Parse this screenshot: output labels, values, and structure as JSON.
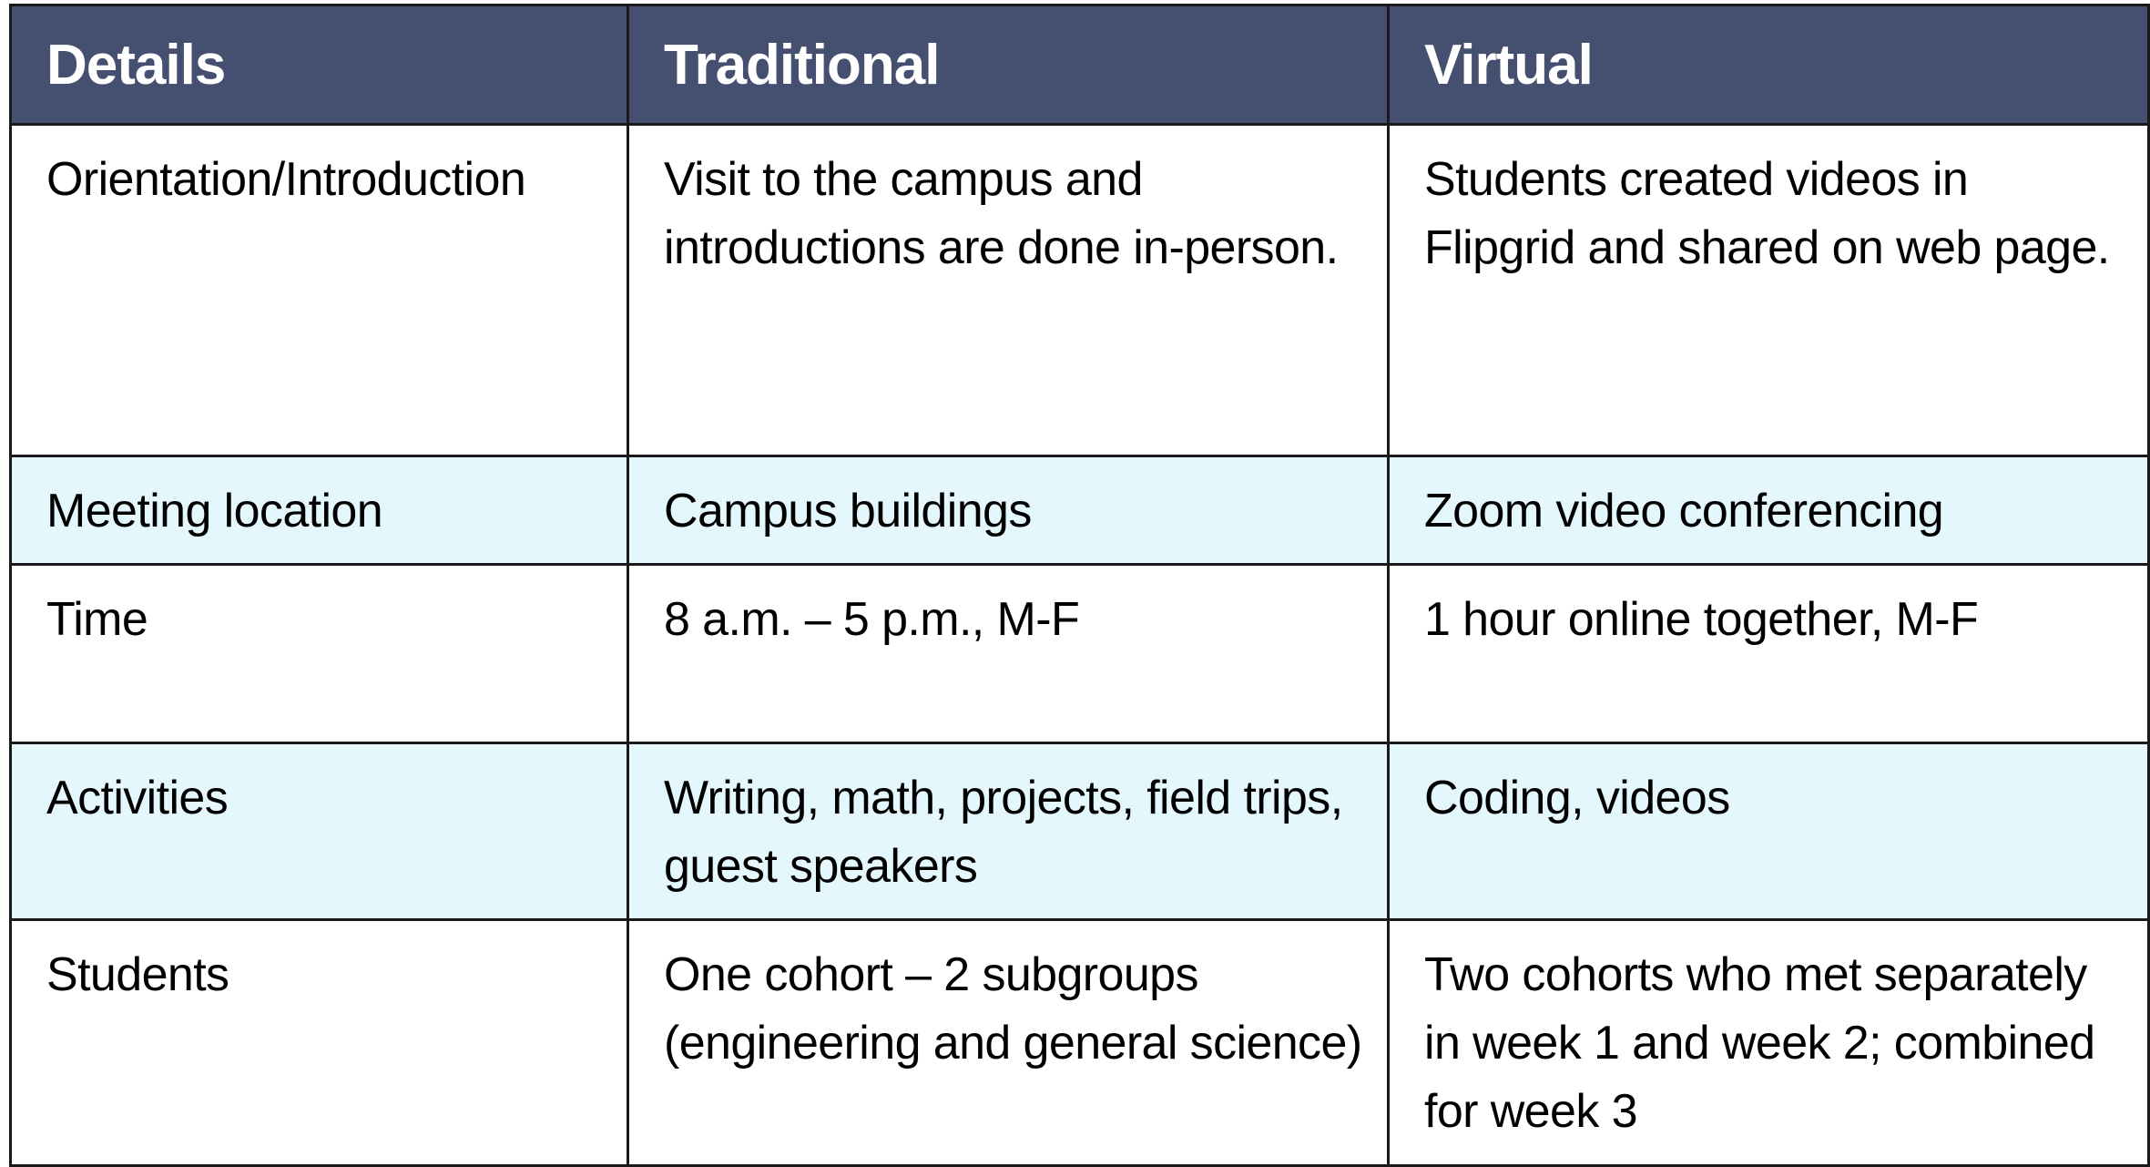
{
  "colors": {
    "header_bg": "#455070",
    "header_text": "#ffffff",
    "shaded_row": "#e4f7fd"
  },
  "table": {
    "headers": [
      "Details",
      "Traditional",
      "Virtual"
    ],
    "rows": [
      [
        "Orientation/Introduction",
        "Visit to the campus and introductions are done in-person.",
        "Students created videos in Flipgrid and shared on web page."
      ],
      [
        "Meeting location",
        "Campus buildings",
        "Zoom video conferencing"
      ],
      [
        "Time",
        "8 a.m. – 5 p.m., M-F",
        "1 hour online together, M-F"
      ],
      [
        "Activities",
        "Writing, math, projects, field trips, guest speakers",
        "Coding, videos"
      ],
      [
        "Students",
        "One cohort – 2 subgroups (engineering and general science)",
        "Two cohorts who met separately in week 1 and week 2; combined for week 3"
      ]
    ]
  }
}
